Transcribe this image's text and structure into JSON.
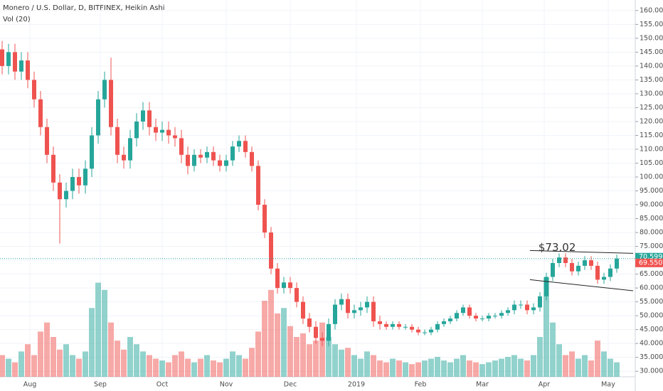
{
  "chart_data": {
    "type": "candlestick",
    "title": "Monero / U.S. Dollar, D, BITFINEX, Heikin Ashi",
    "subtitle": "Vol (20)",
    "up_color": "#26a69a",
    "down_color": "#ef5350",
    "grid": true,
    "xlim": [
      -1,
      296
    ],
    "ylim": [
      28,
      163.8
    ],
    "xticks": [
      {
        "value": 13,
        "label": "Aug"
      },
      {
        "value": 46,
        "label": "Sep"
      },
      {
        "value": 75,
        "label": "Oct"
      },
      {
        "value": 105,
        "label": "Nov"
      },
      {
        "value": 135,
        "label": "Dec"
      },
      {
        "value": 166,
        "label": "2019"
      },
      {
        "value": 196,
        "label": "Feb"
      },
      {
        "value": 225,
        "label": "Mar"
      },
      {
        "value": 254,
        "label": "Apr"
      },
      {
        "value": 284,
        "label": "May"
      }
    ],
    "yticks": [
      {
        "value": 30,
        "label": "30.000"
      },
      {
        "value": 35,
        "label": "35.000"
      },
      {
        "value": 40,
        "label": "40.000"
      },
      {
        "value": 45,
        "label": "45.000"
      },
      {
        "value": 50,
        "label": "50.000"
      },
      {
        "value": 55,
        "label": "55.000"
      },
      {
        "value": 60,
        "label": "60.000"
      },
      {
        "value": 65,
        "label": "65.000"
      },
      {
        "value": 70,
        "label": "70.000"
      },
      {
        "value": 75,
        "label": "75.000"
      },
      {
        "value": 80,
        "label": "80.000"
      },
      {
        "value": 85,
        "label": "85.000"
      },
      {
        "value": 90,
        "label": "90.000"
      },
      {
        "value": 95,
        "label": "95.000"
      },
      {
        "value": 100,
        "label": "100.000"
      },
      {
        "value": 105,
        "label": "105.000"
      },
      {
        "value": 110,
        "label": "110.000"
      },
      {
        "value": 115,
        "label": "115.000"
      },
      {
        "value": 120,
        "label": "120.000"
      },
      {
        "value": 125,
        "label": "125.000"
      },
      {
        "value": 130,
        "label": "130.000"
      },
      {
        "value": 135,
        "label": "135.000"
      },
      {
        "value": 140,
        "label": "140.000"
      },
      {
        "value": 145,
        "label": "145.000"
      },
      {
        "value": 150,
        "label": "150.000"
      },
      {
        "value": 155,
        "label": "155.000"
      },
      {
        "value": 160,
        "label": "160.000"
      }
    ],
    "x": [
      0,
      3,
      6,
      9,
      12,
      15,
      18,
      21,
      24,
      27,
      30,
      33,
      36,
      39,
      42,
      45,
      48,
      51,
      54,
      57,
      60,
      63,
      66,
      69,
      72,
      75,
      78,
      81,
      84,
      87,
      90,
      93,
      96,
      99,
      102,
      105,
      108,
      111,
      114,
      117,
      120,
      123,
      126,
      129,
      132,
      135,
      138,
      141,
      144,
      147,
      150,
      153,
      156,
      159,
      162,
      165,
      168,
      171,
      174,
      177,
      180,
      183,
      186,
      189,
      192,
      195,
      198,
      201,
      204,
      207,
      210,
      213,
      216,
      219,
      222,
      225,
      228,
      231,
      234,
      237,
      240,
      243,
      246,
      249,
      252,
      255,
      258,
      261,
      264,
      267,
      270,
      273,
      276,
      279,
      282,
      285,
      288
    ],
    "open": [
      146,
      140,
      145,
      138,
      142,
      135,
      128,
      118,
      108,
      98,
      92,
      95,
      100,
      97,
      103,
      115,
      128,
      135,
      118,
      108,
      106,
      114,
      120,
      124,
      118,
      116,
      117,
      115,
      114,
      108,
      104,
      108,
      107,
      109,
      106,
      104,
      106,
      111,
      113,
      109,
      104,
      90,
      80,
      67,
      60,
      62,
      60,
      55,
      49,
      46,
      42,
      41,
      47,
      54,
      56,
      51,
      52,
      53,
      55,
      48,
      47,
      46,
      47,
      46,
      46,
      45,
      44,
      44,
      45,
      47,
      48,
      49,
      51,
      53,
      50,
      49,
      49,
      50,
      50,
      51,
      52,
      54,
      54,
      52,
      53,
      57,
      64,
      69,
      71,
      69,
      66,
      68,
      70,
      68,
      63,
      64,
      67
    ],
    "high": [
      149,
      148,
      148,
      145,
      145,
      138,
      131,
      121,
      111,
      101,
      98,
      103,
      103,
      106,
      118,
      131,
      138,
      143,
      121,
      111,
      117,
      123,
      127,
      127,
      121,
      120,
      120,
      118,
      117,
      111,
      110,
      110,
      111,
      111,
      108,
      108,
      113,
      115,
      115,
      111,
      106,
      92,
      82,
      69,
      64,
      64,
      62,
      57,
      51,
      48,
      44,
      49,
      56,
      58,
      58,
      54,
      55,
      57,
      57,
      50,
      48,
      48,
      48,
      47,
      47,
      46,
      45,
      46,
      48,
      49,
      50,
      52,
      54,
      54,
      51,
      50,
      51,
      51,
      52,
      53,
      55.5,
      55.5,
      55.5,
      54.5,
      58.5,
      65.5,
      70.5,
      72.5,
      72.5,
      70.5,
      69.5,
      71.5,
      71.5,
      69.5,
      65.5,
      68.5,
      72
    ],
    "low": [
      137,
      137,
      135,
      135,
      132,
      125,
      115,
      105,
      95,
      76,
      89,
      92,
      94,
      94,
      100,
      112,
      125,
      115,
      105,
      103,
      103,
      111,
      117,
      115,
      113,
      113,
      112,
      111,
      105,
      101,
      102,
      105,
      105,
      104,
      102,
      102,
      104,
      109,
      107,
      102,
      88,
      78,
      65,
      58,
      58,
      58,
      53,
      47,
      44,
      40,
      39,
      39,
      45,
      52,
      49,
      49,
      50,
      51,
      46,
      45,
      45,
      45,
      45,
      45,
      44,
      43,
      43,
      43,
      44,
      46,
      47,
      48,
      50,
      49,
      48,
      48,
      48,
      49,
      49,
      50,
      50.5,
      52.5,
      50.5,
      50.5,
      51.5,
      55.5,
      62.5,
      67.5,
      67.5,
      64.5,
      64.5,
      66.5,
      66.5,
      61.5,
      61.5,
      62.5,
      65.5
    ],
    "close": [
      140,
      145,
      138,
      142,
      135,
      128,
      118,
      108,
      98,
      92,
      95,
      100,
      97,
      103,
      115,
      128,
      135,
      118,
      108,
      106,
      114,
      120,
      124,
      118,
      116,
      117,
      115,
      114,
      108,
      104,
      108,
      107,
      109,
      106,
      104,
      106,
      111,
      113,
      109,
      104,
      90,
      80,
      67,
      60,
      62,
      60,
      55,
      49,
      46,
      42,
      41,
      47,
      54,
      56,
      51,
      52,
      53,
      55,
      48,
      47,
      46,
      47,
      46,
      46,
      45,
      44,
      44,
      45,
      47,
      48,
      49,
      51,
      53,
      50,
      49,
      49,
      50,
      50,
      51,
      52,
      54,
      54,
      52,
      53,
      57,
      64,
      69,
      71,
      69,
      66,
      68,
      70,
      68,
      63,
      64,
      67,
      70.6
    ],
    "volume": [
      12,
      10,
      8,
      14,
      18,
      12,
      25,
      30,
      22,
      15,
      18,
      12,
      10,
      14,
      38,
      52,
      48,
      30,
      20,
      15,
      22,
      18,
      14,
      12,
      10,
      9,
      8,
      12,
      14,
      10,
      8,
      10,
      12,
      9,
      8,
      10,
      14,
      12,
      10,
      16,
      25,
      42,
      48,
      35,
      38,
      28,
      22,
      24,
      18,
      20,
      30,
      22,
      18,
      15,
      16,
      12,
      10,
      14,
      12,
      9,
      8,
      10,
      9,
      8,
      7,
      8,
      9,
      10,
      11,
      9,
      8,
      10,
      12,
      9,
      8,
      7,
      8,
      9,
      10,
      11,
      12,
      10,
      9,
      12,
      22,
      55,
      30,
      18,
      12,
      14,
      10,
      12,
      9,
      20,
      14,
      10,
      8
    ],
    "last_price": {
      "value": 70.599,
      "label": "70.599",
      "color": "#26a69a"
    },
    "second_price": {
      "value": 69.55,
      "label": "69.550",
      "color": "#ef5350"
    },
    "trendlines": [
      {
        "x": [
          247.3,
          295.7
        ],
        "y": [
          73.5,
          72.5
        ]
      },
      {
        "x": [
          247.3,
          295.7
        ],
        "y": [
          63,
          59
        ]
      }
    ],
    "annotation": "$73.02"
  }
}
